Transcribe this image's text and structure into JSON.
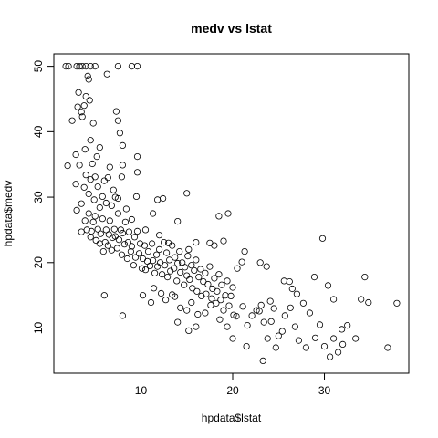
{
  "chart_data": {
    "type": "scatter",
    "title": "medv vs lstat",
    "xlabel": "hpdata$lstat",
    "ylabel": "hpdata$medv",
    "xlim": [
      0.5,
      39.2
    ],
    "ylim": [
      3.1,
      51.9
    ],
    "xticks": [
      10,
      20,
      30
    ],
    "yticks": [
      10,
      20,
      30,
      40,
      50
    ],
    "grid": false,
    "legend": "none",
    "points": [
      [
        1.8,
        50
      ],
      [
        2.1,
        50
      ],
      [
        3.0,
        50
      ],
      [
        3.3,
        50
      ],
      [
        3.6,
        50
      ],
      [
        4.0,
        50
      ],
      [
        4.5,
        50
      ],
      [
        5.0,
        50
      ],
      [
        7.5,
        50
      ],
      [
        9.0,
        50
      ],
      [
        9.6,
        50
      ],
      [
        2.0,
        34.8
      ],
      [
        2.5,
        41.7
      ],
      [
        2.9,
        36.5
      ],
      [
        3.1,
        43.8
      ],
      [
        3.2,
        46.0
      ],
      [
        3.5,
        43.0
      ],
      [
        3.6,
        42.3
      ],
      [
        3.8,
        44.0
      ],
      [
        3.9,
        37.3
      ],
      [
        4.0,
        45.4
      ],
      [
        4.2,
        48.5
      ],
      [
        4.3,
        48.0
      ],
      [
        4.4,
        44.8
      ],
      [
        4.5,
        38.7
      ],
      [
        4.8,
        41.3
      ],
      [
        5.2,
        36.2
      ],
      [
        5.5,
        37.6
      ],
      [
        6.3,
        48.8
      ],
      [
        7.3,
        43.1
      ],
      [
        7.5,
        41.7
      ],
      [
        7.7,
        39.8
      ],
      [
        8.0,
        37.9
      ],
      [
        9.6,
        36.2
      ],
      [
        2.9,
        32.0
      ],
      [
        3.0,
        28.0
      ],
      [
        3.3,
        34.9
      ],
      [
        3.5,
        29.0
      ],
      [
        3.8,
        31.5
      ],
      [
        4.0,
        33.4
      ],
      [
        4.3,
        30.5
      ],
      [
        4.5,
        32.7
      ],
      [
        4.7,
        35.1
      ],
      [
        4.9,
        29.6
      ],
      [
        5.0,
        33.1
      ],
      [
        5.3,
        31.6
      ],
      [
        5.5,
        28.4
      ],
      [
        5.8,
        30.1
      ],
      [
        6.0,
        32.5
      ],
      [
        6.2,
        29.1
      ],
      [
        6.4,
        33.0
      ],
      [
        6.6,
        34.6
      ],
      [
        6.8,
        28.7
      ],
      [
        7.0,
        31.1
      ],
      [
        7.2,
        30.0
      ],
      [
        7.5,
        29.8
      ],
      [
        7.9,
        33.1
      ],
      [
        8.0,
        34.9
      ],
      [
        8.4,
        28.2
      ],
      [
        9.0,
        26.6
      ],
      [
        9.5,
        30.1
      ],
      [
        9.6,
        33.8
      ],
      [
        11.8,
        29.6
      ],
      [
        12.4,
        29.8
      ],
      [
        15.0,
        30.6
      ],
      [
        3.5,
        24.7
      ],
      [
        3.9,
        26.4
      ],
      [
        4.1,
        25.0
      ],
      [
        4.3,
        27.5
      ],
      [
        4.5,
        23.9
      ],
      [
        4.6,
        24.8
      ],
      [
        4.8,
        26.2
      ],
      [
        5.0,
        27.1
      ],
      [
        5.1,
        23.4
      ],
      [
        5.3,
        25.1
      ],
      [
        5.5,
        22.9
      ],
      [
        5.6,
        24.4
      ],
      [
        5.8,
        26.7
      ],
      [
        5.9,
        21.7
      ],
      [
        6.1,
        23.1
      ],
      [
        6.2,
        25.0
      ],
      [
        6.4,
        22.6
      ],
      [
        6.5,
        24.3
      ],
      [
        6.6,
        26.4
      ],
      [
        6.8,
        21.9
      ],
      [
        6.9,
        23.8
      ],
      [
        7.1,
        25.1
      ],
      [
        7.2,
        24.0
      ],
      [
        7.4,
        22.2
      ],
      [
        7.5,
        27.5
      ],
      [
        7.6,
        23.5
      ],
      [
        7.8,
        25.0
      ],
      [
        7.9,
        21.2
      ],
      [
        8.0,
        24.5
      ],
      [
        8.2,
        22.8
      ],
      [
        8.3,
        26.2
      ],
      [
        8.5,
        20.6
      ],
      [
        8.6,
        23.1
      ],
      [
        8.7,
        24.7
      ],
      [
        8.9,
        21.7
      ],
      [
        9.0,
        22.5
      ],
      [
        9.2,
        19.6
      ],
      [
        9.3,
        23.9
      ],
      [
        9.4,
        20.8
      ],
      [
        9.6,
        24.8
      ],
      [
        9.8,
        21.4
      ],
      [
        9.9,
        22.9
      ],
      [
        10.1,
        19.1
      ],
      [
        10.2,
        20.6
      ],
      [
        10.4,
        22.6
      ],
      [
        10.5,
        18.9
      ],
      [
        10.7,
        20.2
      ],
      [
        10.8,
        21.7
      ],
      [
        11.0,
        19.5
      ],
      [
        11.2,
        22.9
      ],
      [
        11.3,
        20.3
      ],
      [
        11.5,
        18.4
      ],
      [
        11.7,
        21.2
      ],
      [
        11.8,
        19.4
      ],
      [
        12.0,
        22.0
      ],
      [
        12.1,
        20.0
      ],
      [
        12.3,
        18.2
      ],
      [
        12.5,
        23.1
      ],
      [
        12.6,
        19.6
      ],
      [
        12.8,
        21.5
      ],
      [
        12.9,
        17.8
      ],
      [
        13.1,
        20.4
      ],
      [
        13.2,
        18.7
      ],
      [
        13.4,
        22.6
      ],
      [
        13.6,
        19.1
      ],
      [
        13.7,
        20.8
      ],
      [
        13.9,
        17.2
      ],
      [
        14.0,
        19.9
      ],
      [
        14.2,
        21.7
      ],
      [
        14.3,
        18.5
      ],
      [
        14.5,
        20.0
      ],
      [
        14.7,
        16.6
      ],
      [
        14.8,
        19.3
      ],
      [
        15.0,
        18.0
      ],
      [
        15.1,
        21.0
      ],
      [
        15.3,
        17.4
      ],
      [
        15.5,
        19.6
      ],
      [
        15.6,
        16.1
      ],
      [
        15.8,
        18.8
      ],
      [
        16.0,
        20.4
      ],
      [
        16.1,
        15.6
      ],
      [
        16.3,
        17.8
      ],
      [
        16.5,
        19.0
      ],
      [
        16.6,
        14.9
      ],
      [
        16.8,
        17.1
      ],
      [
        17.0,
        18.4
      ],
      [
        17.1,
        15.2
      ],
      [
        17.3,
        16.7
      ],
      [
        17.5,
        19.4
      ],
      [
        17.7,
        14.5
      ],
      [
        17.8,
        16.0
      ],
      [
        18.0,
        17.6
      ],
      [
        18.2,
        13.8
      ],
      [
        18.3,
        15.6
      ],
      [
        18.5,
        18.2
      ],
      [
        18.7,
        14.3
      ],
      [
        18.8,
        16.6
      ],
      [
        19.0,
        12.7
      ],
      [
        19.2,
        15.0
      ],
      [
        19.4,
        17.2
      ],
      [
        19.6,
        13.4
      ],
      [
        19.8,
        14.9
      ],
      [
        20.0,
        16.2
      ],
      [
        10.5,
        25.0
      ],
      [
        11.3,
        27.5
      ],
      [
        12.0,
        24.2
      ],
      [
        13.0,
        23.0
      ],
      [
        14.0,
        26.3
      ],
      [
        15.2,
        22.0
      ],
      [
        16.0,
        23.1
      ],
      [
        17.5,
        23.0
      ],
      [
        18.0,
        22.6
      ],
      [
        18.5,
        27.1
      ],
      [
        19.0,
        23.3
      ],
      [
        19.5,
        27.5
      ],
      [
        20.5,
        19.1
      ],
      [
        21.0,
        20.1
      ],
      [
        21.3,
        21.7
      ],
      [
        23.0,
        20.0
      ],
      [
        23.7,
        19.4
      ],
      [
        12.7,
        14.3
      ],
      [
        13.4,
        15.1
      ],
      [
        14.3,
        13.1
      ],
      [
        15.0,
        12.7
      ],
      [
        15.5,
        13.9
      ],
      [
        16.2,
        12.1
      ],
      [
        17.0,
        12.3
      ],
      [
        17.6,
        13.5
      ],
      [
        18.6,
        11.3
      ],
      [
        19.4,
        10.2
      ],
      [
        20.1,
        12.0
      ],
      [
        20.4,
        11.8
      ],
      [
        21.1,
        13.3
      ],
      [
        21.6,
        10.4
      ],
      [
        22.1,
        11.9
      ],
      [
        22.6,
        12.7
      ],
      [
        23.1,
        13.5
      ],
      [
        23.4,
        10.9
      ],
      [
        23.8,
        8.4
      ],
      [
        24.2,
        11.0
      ],
      [
        24.5,
        13.0
      ],
      [
        25.0,
        8.8
      ],
      [
        25.4,
        9.5
      ],
      [
        25.7,
        11.9
      ],
      [
        26.3,
        13.1
      ],
      [
        26.8,
        10.2
      ],
      [
        27.2,
        8.1
      ],
      [
        27.7,
        13.8
      ],
      [
        28.0,
        7.0
      ],
      [
        28.4,
        12.3
      ],
      [
        29.0,
        8.5
      ],
      [
        29.5,
        10.5
      ],
      [
        30.0,
        7.2
      ],
      [
        30.6,
        5.6
      ],
      [
        31.0,
        8.4
      ],
      [
        31.5,
        6.3
      ],
      [
        32.0,
        7.5
      ],
      [
        32.5,
        10.4
      ],
      [
        33.4,
        8.4
      ],
      [
        34.0,
        14.4
      ],
      [
        34.4,
        17.8
      ],
      [
        34.8,
        13.9
      ],
      [
        36.9,
        7.0
      ],
      [
        37.9,
        13.8
      ],
      [
        14.0,
        10.9
      ],
      [
        15.2,
        9.6
      ],
      [
        16.0,
        10.2
      ],
      [
        20.0,
        8.4
      ],
      [
        21.5,
        7.2
      ],
      [
        23.3,
        5.0
      ],
      [
        24.7,
        7.0
      ],
      [
        25.6,
        17.2
      ],
      [
        26.5,
        16.0
      ],
      [
        27.0,
        15.2
      ],
      [
        28.9,
        17.8
      ],
      [
        29.8,
        23.7
      ],
      [
        31.0,
        14.4
      ],
      [
        31.9,
        9.8
      ],
      [
        30.4,
        16.5
      ],
      [
        26.2,
        17.1
      ],
      [
        24.1,
        14.1
      ],
      [
        22.9,
        12.6
      ],
      [
        6.0,
        15.0
      ],
      [
        8.0,
        11.9
      ],
      [
        10.2,
        15.0
      ],
      [
        11.1,
        13.9
      ],
      [
        11.4,
        16.1
      ],
      [
        12.2,
        15.3
      ],
      [
        13.7,
        14.8
      ]
    ]
  }
}
